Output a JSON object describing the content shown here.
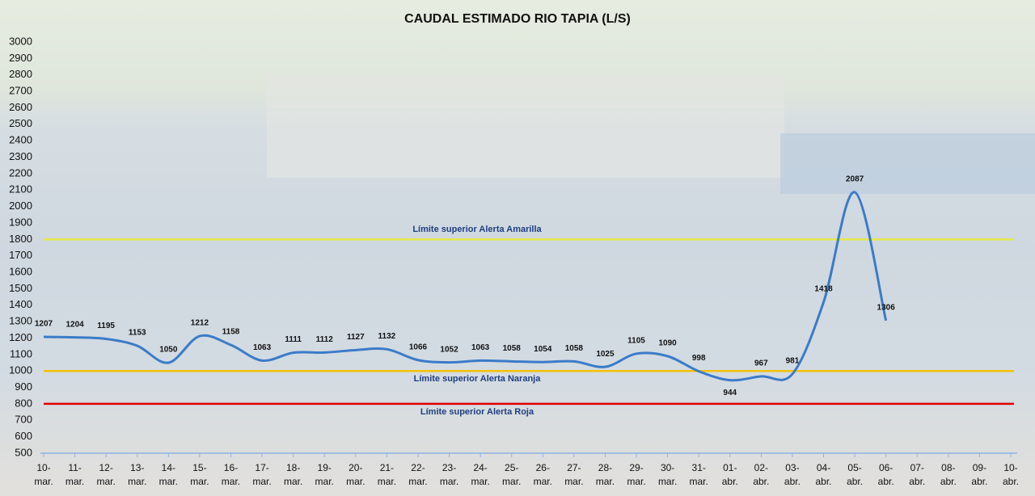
{
  "chart_data": {
    "type": "line",
    "title": "CAUDAL ESTIMADO  RIO TAPIA  (L/S)",
    "categories": [
      "10-mar.",
      "11-mar.",
      "12-mar.",
      "13-mar.",
      "14-mar.",
      "15-mar.",
      "16-mar.",
      "17-mar.",
      "18-mar.",
      "19-mar.",
      "20-mar.",
      "21-mar.",
      "22-mar.",
      "23-mar.",
      "24-mar.",
      "25-mar.",
      "26-mar.",
      "27-mar.",
      "28-mar.",
      "29-mar.",
      "30-mar.",
      "31-mar.",
      "01-abr.",
      "02-abr.",
      "03-abr.",
      "04-abr.",
      "05-abr.",
      "06-abr.",
      "07-abr.",
      "08-abr.",
      "09-abr.",
      "10-abr."
    ],
    "series": [
      {
        "name": "Caudal",
        "color": "#3b7bc8",
        "values": [
          1207,
          1204,
          1195,
          1153,
          1050,
          1212,
          1158,
          1063,
          1111,
          1112,
          1127,
          1132,
          1066,
          1052,
          1063,
          1058,
          1054,
          1058,
          1025,
          1105,
          1090,
          998,
          944,
          967,
          981,
          1418,
          2087,
          1306,
          null,
          null,
          null,
          null
        ]
      }
    ],
    "reference_lines": [
      {
        "label": "Límite superior  Alerta Amarilla",
        "value": 1800,
        "color": "#e4ea45"
      },
      {
        "label": "Límite superior  Alerta Naranja",
        "value": 1000,
        "color": "#f5c000"
      },
      {
        "label": "Límite superior  Alerta Roja",
        "value": 800,
        "color": "#e00000"
      }
    ],
    "ylim": [
      500,
      3000
    ],
    "yticks": [
      500,
      600,
      700,
      800,
      900,
      1000,
      1100,
      1200,
      1300,
      1400,
      1500,
      1600,
      1700,
      1800,
      1900,
      2000,
      2100,
      2200,
      2300,
      2400,
      2500,
      2600,
      2700,
      2800,
      2900,
      3000
    ]
  }
}
